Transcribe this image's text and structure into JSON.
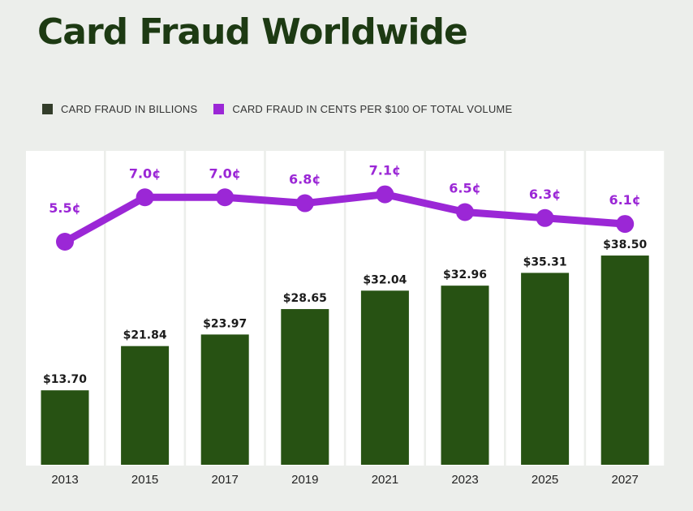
{
  "title": "Card Fraud Worldwide",
  "legend": {
    "bars_label": "CARD FRAUD IN BILLIONS",
    "line_label": "CARD FRAUD IN CENTS PER $100 OF TOTAL VOLUME"
  },
  "colors": {
    "bar": "#275213",
    "line": "#9b27d6",
    "bar_label": "#1b1b1b",
    "line_label": "#9b27d6",
    "column_bg": "#ffffff",
    "page_bg": "#eceeeb"
  },
  "chart_data": {
    "type": "bar",
    "title": "Card Fraud Worldwide",
    "categories": [
      "2013",
      "2015",
      "2017",
      "2019",
      "2021",
      "2023",
      "2025",
      "2027"
    ],
    "series": [
      {
        "name": "CARD FRAUD IN BILLIONS",
        "type": "bar",
        "values": [
          13.7,
          21.84,
          23.97,
          28.65,
          32.04,
          32.96,
          35.31,
          38.5
        ],
        "labels": [
          "$13.70",
          "$21.84",
          "$23.97",
          "$28.65",
          "$32.04",
          "$32.96",
          "$35.31",
          "$38.50"
        ]
      },
      {
        "name": "CARD FRAUD IN CENTS PER $100 OF TOTAL VOLUME",
        "type": "line",
        "values": [
          5.5,
          7.0,
          7.0,
          6.8,
          7.1,
          6.5,
          6.3,
          6.1
        ],
        "labels": [
          "5.5¢",
          "7.0¢",
          "7.0¢",
          "6.8¢",
          "7.1¢",
          "6.5¢",
          "6.3¢",
          "6.1¢"
        ]
      }
    ],
    "grid": false,
    "legend_position": "top-left"
  }
}
